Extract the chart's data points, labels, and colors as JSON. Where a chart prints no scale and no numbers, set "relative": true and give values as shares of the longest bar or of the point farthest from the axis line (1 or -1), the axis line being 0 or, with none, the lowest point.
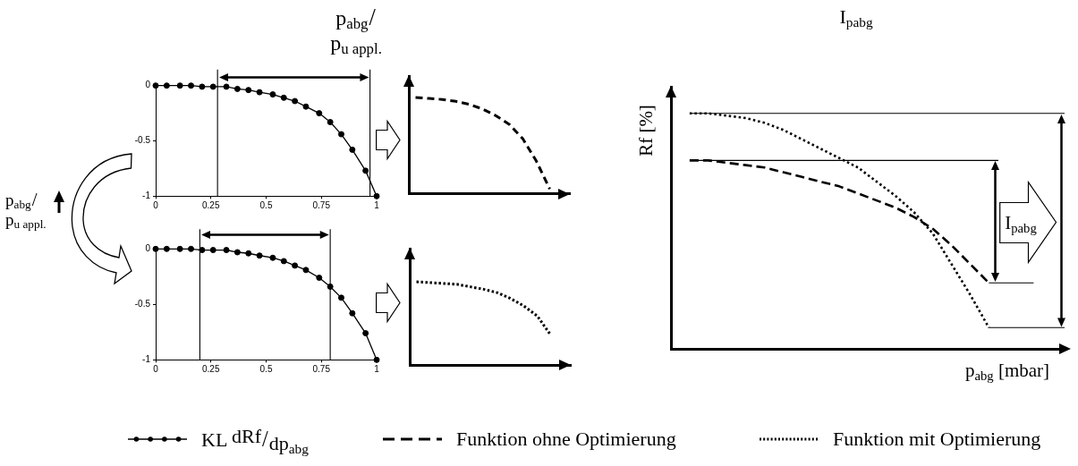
{
  "chart_data": [
    {
      "type": "line",
      "title": "p$_{abg}$/p$_{u appl.}$",
      "x": [
        0,
        0.05,
        0.11,
        0.16,
        0.21,
        0.26,
        0.32,
        0.37,
        0.42,
        0.47,
        0.53,
        0.58,
        0.63,
        0.68,
        0.74,
        0.79,
        0.84,
        0.89,
        0.95,
        1
      ],
      "series": [
        {
          "name": "KL dRf/dp$_{abg}$",
          "color": "#000000",
          "values": [
            0,
            0,
            0,
            0,
            -0.01,
            -0.01,
            -0.01,
            -0.03,
            -0.04,
            -0.06,
            -0.08,
            -0.11,
            -0.14,
            -0.19,
            -0.25,
            -0.33,
            -0.44,
            -0.58,
            -0.77,
            -1
          ]
        }
      ],
      "xlim": [
        0,
        1
      ],
      "xticks": [
        0,
        0.25,
        0.5,
        0.75,
        1
      ],
      "ylim": [
        -1,
        0
      ],
      "yticks": [
        -1,
        -0.5,
        0
      ],
      "marker": "circle",
      "legend": "bottom",
      "ref_lines": [
        {
          "axis": "x",
          "value": 0.28
        },
        {
          "axis": "x",
          "value": 0.97
        }
      ],
      "annotations": [
        "p$_{abg}$/p$_{u appl.}$"
      ]
    },
    {
      "type": "line",
      "relative": true,
      "categories": [
        null,
        null,
        null,
        null,
        null,
        null,
        null,
        null,
        null,
        null,
        null,
        null
      ],
      "values": [
        1,
        0.99,
        0.98,
        0.96,
        0.93,
        0.88,
        0.81,
        0.72,
        0.57,
        0.34,
        0.05,
        null
      ],
      "color": "#000000",
      "line_style": "dashed"
    },
    {
      "type": "line",
      "x": [
        0,
        0.05,
        0.11,
        0.16,
        0.21,
        0.26,
        0.32,
        0.37,
        0.42,
        0.47,
        0.53,
        0.58,
        0.63,
        0.68,
        0.74,
        0.79,
        0.84,
        0.89,
        0.95,
        1
      ],
      "series": [
        {
          "color": "#000000",
          "values": [
            0,
            0,
            0,
            0,
            -0.01,
            -0.01,
            -0.01,
            -0.03,
            -0.04,
            -0.06,
            -0.08,
            -0.11,
            -0.15,
            -0.19,
            -0.26,
            -0.34,
            -0.44,
            -0.58,
            -0.76,
            -1
          ]
        }
      ],
      "xlim": [
        0,
        1
      ],
      "xticks": [
        0,
        0.25,
        0.5,
        0.75,
        1
      ],
      "ylim": [
        -1,
        0
      ],
      "yticks": [
        -1,
        -0.5,
        0
      ],
      "marker": "circle",
      "ref_lines": [
        {
          "axis": "x",
          "value": 0.2
        },
        {
          "axis": "x",
          "value": 0.79
        }
      ]
    },
    {
      "type": "line",
      "relative": true,
      "categories": [
        null,
        null,
        null,
        null,
        null,
        null,
        null,
        null,
        null,
        null,
        null,
        null
      ],
      "values": [
        1,
        0.99,
        0.98,
        0.97,
        0.94,
        0.91,
        0.87,
        0.8,
        0.71,
        0.59,
        0.36,
        null
      ],
      "color": "#000000",
      "line_style": "dotted"
    },
    {
      "type": "line",
      "relative": true,
      "title": "I$_{pabg}$",
      "xlabel": "p$_{abg}$ [mbar]",
      "ylabel": "Rf [%]",
      "categories": [
        null,
        null,
        null,
        null,
        null,
        null,
        null,
        null,
        null,
        null,
        null,
        null,
        null,
        null,
        null,
        null,
        null,
        null,
        null,
        null,
        null,
        null
      ],
      "series": [
        {
          "name": "Funktion ohne Optimierung",
          "color": "#000000",
          "line_style": "dashed",
          "values": [
            null,
            0.8,
            0.8,
            0.79,
            0.78,
            0.77,
            0.75,
            0.73,
            0.71,
            0.69,
            0.66,
            0.63,
            0.6,
            0.56,
            0.51,
            0.44,
            0.36,
            0.28,
            null,
            null,
            null,
            null
          ]
        },
        {
          "name": "Funktion mit Optimierung",
          "color": "#000000",
          "line_style": "dotted",
          "values": [
            null,
            1,
            1,
            0.99,
            0.98,
            0.96,
            0.93,
            0.89,
            0.85,
            0.81,
            0.77,
            0.71,
            0.65,
            0.58,
            0.49,
            0.36,
            0.23,
            0.09,
            null,
            null,
            null,
            null
          ]
        }
      ],
      "legend": "bottom",
      "ref_lines": [
        {
          "axis": "y",
          "value": 1
        },
        {
          "axis": "y",
          "value": 0.8
        },
        {
          "axis": "y",
          "value": 0.28
        },
        {
          "axis": "y",
          "value": 0.09
        }
      ],
      "annotations": [
        "I$_{pabg}$"
      ]
    }
  ]
}
